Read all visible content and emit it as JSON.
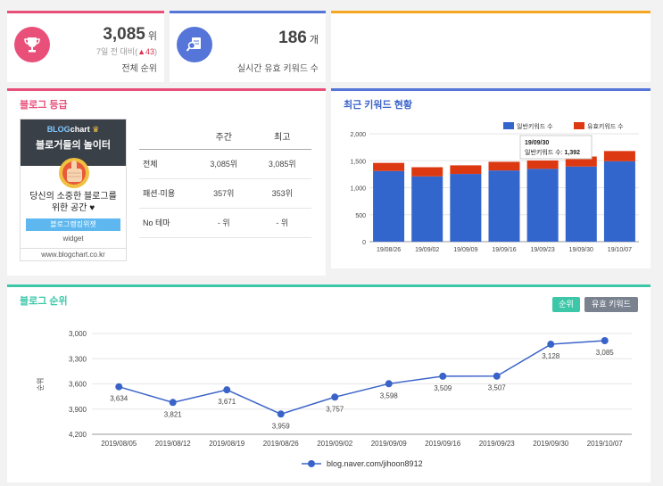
{
  "rank_card": {
    "value": "3,085",
    "unit": "위",
    "change_prefix": "7일 전 대비(",
    "change_arrow": "▲",
    "change_value": "43",
    "change_suffix": ")",
    "label": "전체 순위"
  },
  "keyword_card": {
    "value": "186",
    "unit": "개",
    "label": "실시간 유효 키워드 수"
  },
  "grade_section": {
    "title": "블로그 등급",
    "widget": {
      "logo_blog": "BLOG",
      "logo_chart": "chart",
      "slogan": "블로거들의 놀이터",
      "text_line1": "당신의 소중한 블로그를",
      "text_line2": "위한 공간 ♥",
      "button": "블로그랭킹위젯",
      "caption": "widget",
      "url": "www.blogchart.co.kr"
    },
    "table": {
      "headers": [
        "",
        "주간",
        "최고"
      ],
      "rows": [
        {
          "name": "전체",
          "weekly": "3,085위",
          "best": "3,085위"
        },
        {
          "name": "패션·미용",
          "weekly": "357위",
          "best": "353위"
        },
        {
          "name": "No 테마",
          "weekly": "- 위",
          "best": "- 위"
        }
      ]
    }
  },
  "keyword_section": {
    "title": "최근 키워드 현황",
    "legend": [
      "일반키워드 수",
      "유효키워드 수"
    ],
    "colors": {
      "normal": "#3366cc",
      "valid": "#dc3912"
    },
    "tooltip": {
      "date": "19/09/30",
      "label": "일반키워드 수:",
      "value": "1,392"
    }
  },
  "rank_section": {
    "title": "블로그 순위",
    "buttons": {
      "rank": "순위",
      "keywords": "유효 키워드"
    },
    "ylabel": "순위",
    "legend": "blog.naver.com/jihoon8912"
  },
  "chart_data": [
    {
      "type": "bar",
      "stacked": true,
      "categories": [
        "19/08/26",
        "19/09/02",
        "19/09/09",
        "19/09/16",
        "19/09/23",
        "19/09/30",
        "19/10/07"
      ],
      "series": [
        {
          "name": "일반키워드 수",
          "values": [
            1310,
            1210,
            1255,
            1320,
            1350,
            1392,
            1490
          ]
        },
        {
          "name": "유효키워드 수",
          "values": [
            150,
            170,
            160,
            160,
            155,
            186,
            190
          ]
        }
      ],
      "ylim": [
        0,
        2000
      ],
      "yticks": [
        "0",
        "500",
        "1,000",
        "1,500",
        "2,000"
      ],
      "legend": "top-right",
      "grid": true
    },
    {
      "type": "line",
      "categories": [
        "2019/08/05",
        "2019/08/12",
        "2019/08/19",
        "2019/08/26",
        "2019/09/02",
        "2019/09/09",
        "2019/09/16",
        "2019/09/23",
        "2019/09/30",
        "2019/10/07"
      ],
      "series": [
        {
          "name": "blog.naver.com/jihoon8912",
          "values": [
            3634,
            3821,
            3671,
            3959,
            3757,
            3598,
            3509,
            3507,
            3128,
            3085
          ]
        }
      ],
      "labels": [
        "3,634",
        "3,821",
        "3,671",
        "3,959",
        "3,757",
        "3,598",
        "3,509",
        "3,507",
        "3,128",
        "3,085"
      ],
      "ylabel": "순위",
      "ylim": [
        3000,
        4200
      ],
      "yaxis_reversed": true,
      "yticks": [
        "3,000",
        "3,300",
        "3,600",
        "3,900",
        "4,200"
      ],
      "legend": "bottom",
      "grid": true,
      "color": "#3a63c9"
    }
  ]
}
